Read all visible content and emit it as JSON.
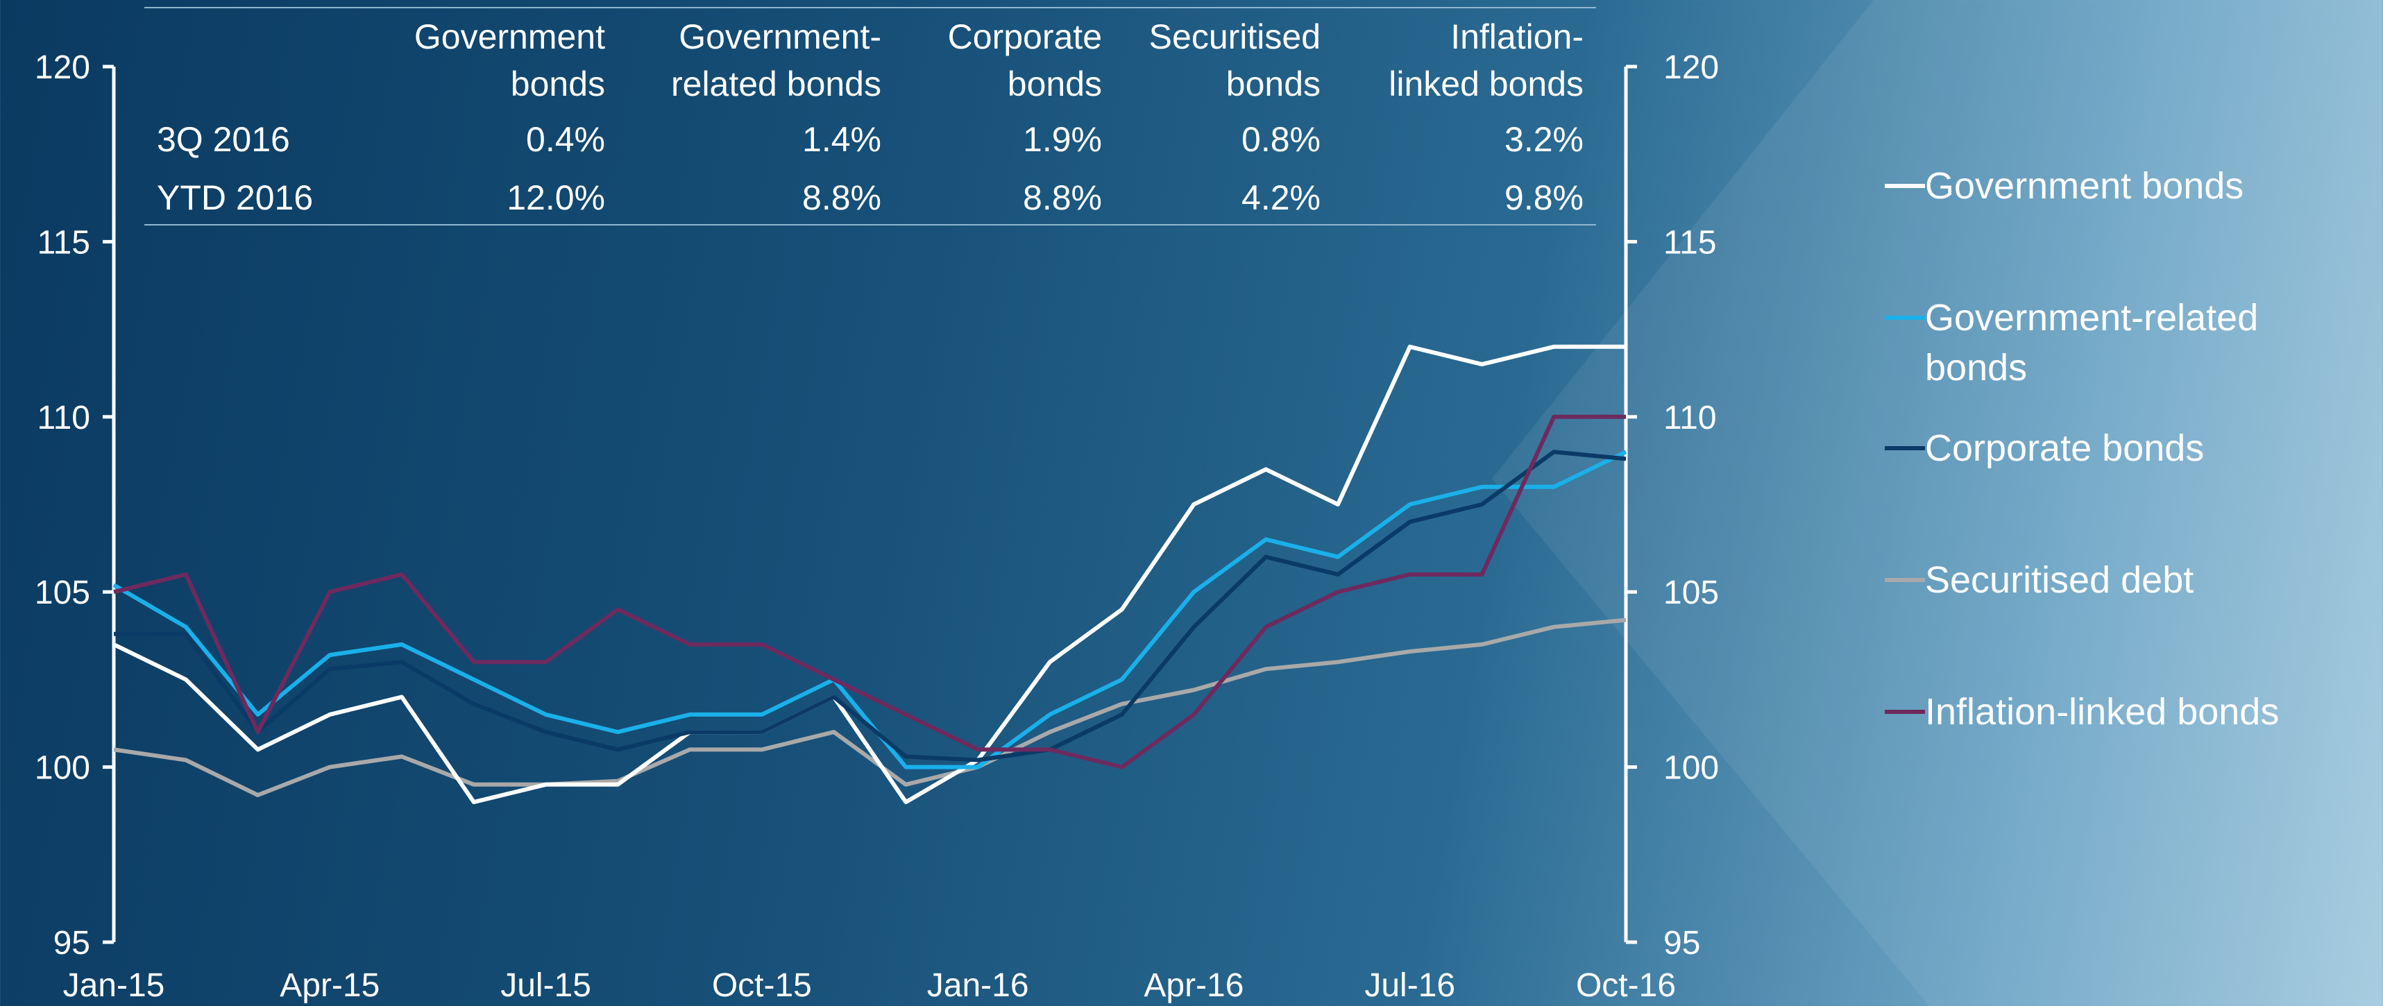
{
  "chart_data": {
    "type": "line",
    "categories": [
      "Jan-15",
      null,
      null,
      "Apr-15",
      null,
      null,
      "Jul-15",
      null,
      null,
      "Oct-15",
      null,
      null,
      "Jan-16",
      null,
      null,
      "Apr-16",
      null,
      null,
      "Jul-16",
      null,
      null,
      "Oct-16"
    ],
    "series": [
      {
        "name": "Government bonds",
        "color": "#ffffff",
        "values": [
          103.5,
          102.5,
          100.5,
          101.5,
          102,
          99,
          99.5,
          99.5,
          101,
          101,
          102,
          99,
          100.2,
          103,
          104.5,
          107.5,
          108.5,
          107.5,
          112,
          111.5,
          112,
          112
        ]
      },
      {
        "name": "Government-related bonds",
        "color": "#1ab0ea",
        "values": [
          105.2,
          104,
          101.5,
          103.2,
          103.5,
          102.5,
          101.5,
          101,
          101.5,
          101.5,
          102.5,
          100,
          100,
          101.5,
          102.5,
          105,
          106.5,
          106,
          107.5,
          108,
          108,
          109
        ]
      },
      {
        "name": "Corporate bonds",
        "color": "#0a3a66",
        "values": [
          103.8,
          103.8,
          101,
          102.8,
          103,
          101.8,
          101,
          100.5,
          101,
          101,
          102,
          100.3,
          100.2,
          100.5,
          101.5,
          104,
          106,
          105.5,
          107,
          107.5,
          109,
          108.8
        ]
      },
      {
        "name": "Securitised debt",
        "color": "#a9a9a9",
        "values": [
          100.5,
          100.2,
          99.2,
          100,
          100.3,
          99.5,
          99.5,
          99.6,
          100.5,
          100.5,
          101,
          99.5,
          100,
          101,
          101.8,
          102.2,
          102.8,
          103,
          103.3,
          103.5,
          104,
          104.2
        ]
      },
      {
        "name": "Inflation-linked bonds",
        "color": "#6e2a5e",
        "values": [
          105,
          105.5,
          101,
          105,
          105.5,
          103,
          103,
          104.5,
          103.5,
          103.5,
          102.5,
          101.5,
          100.5,
          100.5,
          100,
          101.5,
          104,
          105,
          105.5,
          105.5,
          110,
          110
        ]
      }
    ],
    "ylim": [
      95,
      120
    ],
    "yticks": [
      95,
      100,
      105,
      110,
      115,
      120
    ],
    "y2lim": [
      95,
      120
    ],
    "y2ticks": [
      95,
      100,
      105,
      110,
      115,
      120
    ]
  },
  "table": {
    "headers": [
      [
        "Government",
        "bonds"
      ],
      [
        "Government-",
        "related bonds"
      ],
      [
        "Corporate",
        "bonds"
      ],
      [
        "Securitised",
        "bonds"
      ],
      [
        "Inflation-",
        "linked bonds"
      ]
    ],
    "rows": [
      [
        "3Q 2016",
        "0.4%",
        "1.4%",
        "1.9%",
        "0.8%",
        "3.2%"
      ],
      [
        "YTD 2016",
        "12.0%",
        "8.8%",
        "8.8%",
        "4.2%",
        "9.8%"
      ]
    ]
  }
}
